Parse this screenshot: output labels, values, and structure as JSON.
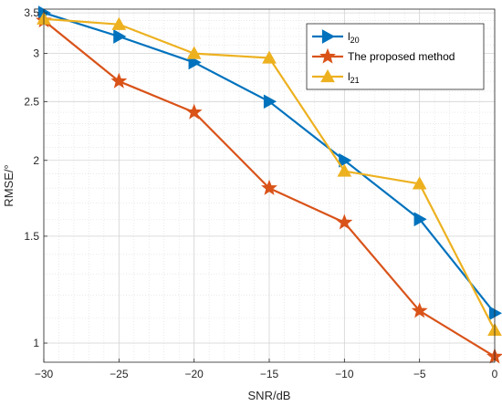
{
  "chart_data": {
    "type": "line",
    "xlabel": "SNR/dB",
    "ylabel": "RMSE/°",
    "xlim": [
      -30,
      0
    ],
    "ylim": [
      0.93,
      3.55
    ],
    "yscale": "log",
    "grid": true,
    "legend_position": "top-right",
    "x_ticks": [
      -30,
      -25,
      -20,
      -15,
      -10,
      -5,
      0
    ],
    "x_tick_labels": [
      "−30",
      "−25",
      "−20",
      "−15",
      "−10",
      "−5",
      "0"
    ],
    "y_ticks": [
      1,
      1.5,
      2,
      2.5,
      3,
      3.5
    ],
    "y_tick_labels": [
      "1",
      "1.5",
      "2",
      "2.5",
      "3",
      "3.5"
    ],
    "x": [
      -30,
      -25,
      -20,
      -15,
      -10,
      -5,
      0
    ],
    "series": [
      {
        "name": "l20",
        "name_main": "l",
        "name_sub": "20",
        "color": "#0072BD",
        "marker": "triangle-right",
        "values": [
          3.5,
          3.2,
          2.9,
          2.5,
          2.0,
          1.6,
          1.12
        ]
      },
      {
        "name": "The proposed method",
        "name_main": "The proposed method",
        "name_sub": "",
        "color": "#D95319",
        "marker": "star",
        "values": [
          3.4,
          2.7,
          2.4,
          1.8,
          1.58,
          1.13,
          0.95
        ]
      },
      {
        "name": "l21",
        "name_main": "l",
        "name_sub": "21",
        "color": "#EDB120",
        "marker": "triangle-up",
        "values": [
          3.42,
          3.35,
          3.0,
          2.95,
          1.92,
          1.83,
          1.05
        ]
      }
    ]
  }
}
